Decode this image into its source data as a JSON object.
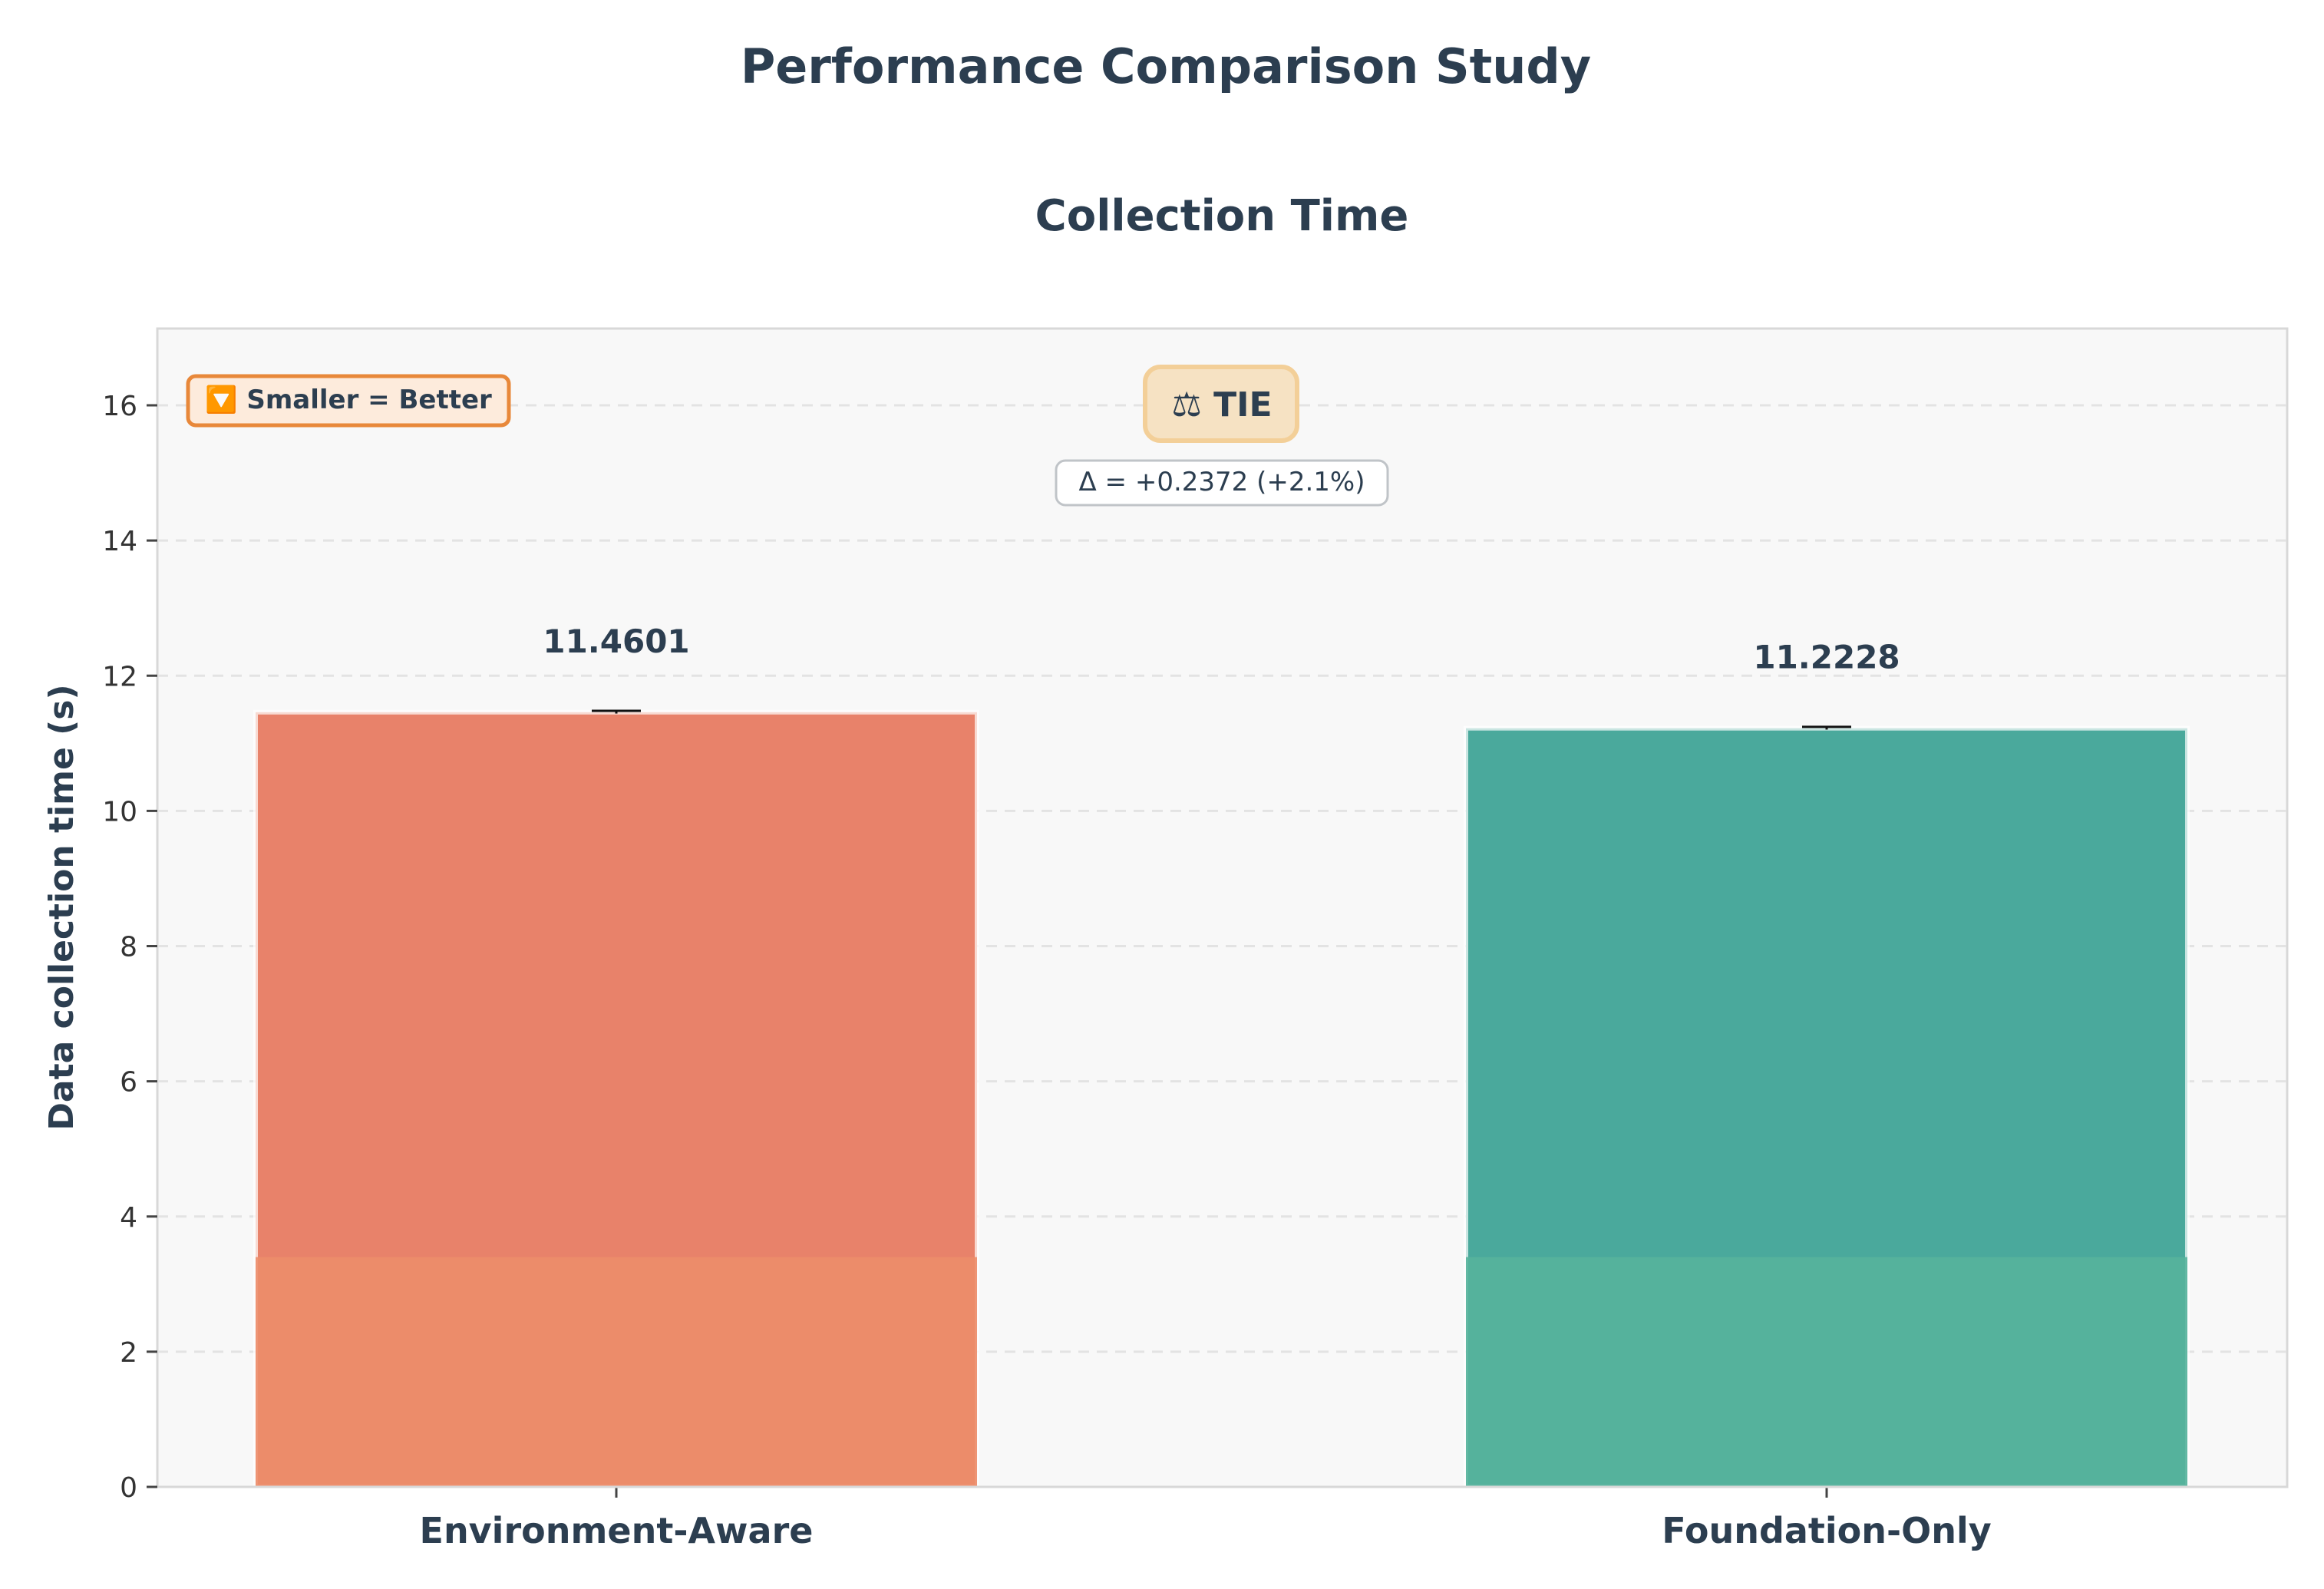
{
  "figure_title": "Performance Comparison Study",
  "chart_data": {
    "type": "bar",
    "title": "Collection Time",
    "xlabel": "",
    "ylabel": "Data collection time (s)",
    "categories": [
      "Environment-Aware",
      "Foundation-Only"
    ],
    "values": [
      11.4601,
      11.2228
    ],
    "value_labels": [
      "11.4601",
      "11.2228"
    ],
    "ylim": [
      0,
      17.1
    ],
    "yticks": [
      0,
      2,
      4,
      6,
      8,
      10,
      12,
      14,
      16
    ],
    "grid": "horizontal dashed",
    "colors": [
      "#e8826a",
      "#4aa99c"
    ],
    "lower_segment_colors": [
      "#ec8d6a",
      "#57b29c"
    ],
    "lower_segment_value": 3.4,
    "error_bar_half_width": 0.02,
    "annotations": {
      "hint": "🔽 Smaller = Better",
      "verdict": "⚖ TIE",
      "delta": "Δ = +0.2372 (+2.1%)"
    }
  }
}
